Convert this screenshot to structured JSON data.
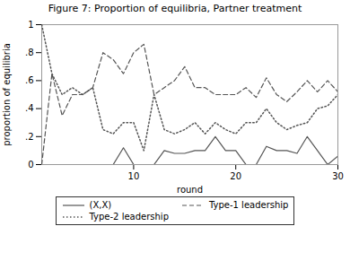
{
  "chart_data": {
    "type": "line",
    "title": "Figure 7: Proportion of equilibria, Partner treatment",
    "xlabel": "round",
    "ylabel": "proportion of equilibria",
    "x": [
      1,
      2,
      3,
      4,
      5,
      6,
      7,
      8,
      9,
      10,
      11,
      12,
      13,
      14,
      15,
      16,
      17,
      18,
      19,
      20,
      21,
      22,
      23,
      24,
      25,
      26,
      27,
      28,
      29,
      30
    ],
    "series": [
      {
        "name": "(X,X)",
        "color": "#555555",
        "line_style": "solid",
        "values": [
          0.0,
          0.0,
          0.0,
          0.0,
          0.0,
          0.0,
          0.0,
          0.0,
          0.12,
          0.0,
          0.0,
          0.0,
          0.1,
          0.08,
          0.08,
          0.1,
          0.1,
          0.2,
          0.1,
          0.1,
          0.0,
          0.0,
          0.13,
          0.1,
          0.1,
          0.08,
          0.2,
          0.1,
          0.0,
          0.06
        ]
      },
      {
        "name": "Type-1 leadership",
        "color": "#555555",
        "line_style": "dashed",
        "values": [
          0.0,
          0.65,
          0.35,
          0.5,
          0.5,
          0.55,
          0.8,
          0.75,
          0.65,
          0.8,
          0.86,
          0.5,
          0.55,
          0.6,
          0.7,
          0.55,
          0.55,
          0.5,
          0.5,
          0.5,
          0.55,
          0.48,
          0.62,
          0.5,
          0.45,
          0.52,
          0.6,
          0.52,
          0.6,
          0.52
        ]
      },
      {
        "name": "Type-2 leadership",
        "color": "#555555",
        "line_style": "dotted",
        "values": [
          1.0,
          0.65,
          0.5,
          0.55,
          0.5,
          0.55,
          0.25,
          0.22,
          0.3,
          0.3,
          0.1,
          0.5,
          0.25,
          0.22,
          0.25,
          0.3,
          0.22,
          0.3,
          0.25,
          0.22,
          0.3,
          0.3,
          0.4,
          0.3,
          0.25,
          0.28,
          0.3,
          0.4,
          0.42,
          0.5
        ]
      }
    ],
    "xlim": [
      1,
      30
    ],
    "xticks": [
      10,
      20,
      30
    ],
    "ylim": [
      0,
      1
    ],
    "yticks": [
      0,
      {
        "value": 0.2,
        "label": ".2"
      },
      {
        "value": 0.4,
        "label": ".4"
      },
      {
        "value": 0.6,
        "label": ".6"
      },
      {
        "value": 0.8,
        "label": ".8"
      },
      1
    ],
    "grid": false,
    "legend": "bottom"
  }
}
